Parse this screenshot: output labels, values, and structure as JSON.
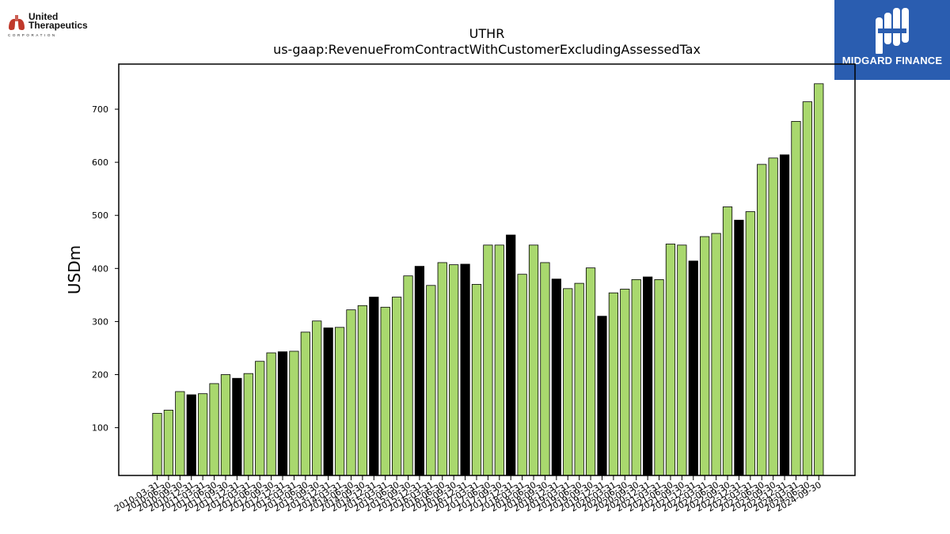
{
  "logos": {
    "left_name": "United\nTherapeutics",
    "left_sub": "CORPORATION",
    "right_name": "MIDGARD FINANCE"
  },
  "chart_data": {
    "type": "bar",
    "title": "UTHR",
    "subtitle": "us-gaap:RevenueFromContractWithCustomerExcludingAssessedTax",
    "ylabel": "USDm",
    "xlabel": "",
    "ylim": [
      10,
      785
    ],
    "yticks": [
      100,
      200,
      300,
      400,
      500,
      600,
      700
    ],
    "colors": {
      "quarter": "#a9d86e",
      "annual": "#000000",
      "edge": "#000000"
    },
    "categories": [
      "2010-03-31",
      "2010-06-30",
      "2010-09-30",
      "2010-12-31",
      "2011-03-31",
      "2011-06-30",
      "2011-09-30",
      "2011-12-31",
      "2012-03-31",
      "2012-06-30",
      "2012-09-30",
      "2012-12-31",
      "2013-03-31",
      "2013-06-30",
      "2013-09-30",
      "2013-12-31",
      "2014-03-31",
      "2014-06-30",
      "2014-09-30",
      "2014-12-31",
      "2015-03-31",
      "2015-06-30",
      "2015-09-30",
      "2015-12-31",
      "2016-03-31",
      "2016-06-30",
      "2016-09-30",
      "2016-12-31",
      "2017-03-31",
      "2017-06-30",
      "2017-09-30",
      "2017-12-31",
      "2018-03-31",
      "2018-06-30",
      "2018-09-30",
      "2018-12-31",
      "2019-03-31",
      "2019-06-30",
      "2019-09-30",
      "2019-12-31",
      "2020-03-31",
      "2020-06-30",
      "2020-09-30",
      "2020-12-31",
      "2021-03-31",
      "2021-06-30",
      "2021-09-30",
      "2021-12-31",
      "2022-03-31",
      "2022-06-30",
      "2022-09-30",
      "2022-12-31",
      "2023-03-31",
      "2023-06-30",
      "2023-09-30",
      "2023-12-31",
      "2024-03-31",
      "2024-06-30",
      "2024-09-30"
    ],
    "values": [
      127,
      133,
      168,
      162,
      164,
      183,
      200,
      193,
      202,
      225,
      241,
      243,
      244,
      280,
      301,
      288,
      289,
      322,
      330,
      346,
      327,
      346,
      386,
      404,
      368,
      411,
      407,
      408,
      370,
      444,
      444,
      463,
      389,
      444,
      411,
      380,
      362,
      372,
      401,
      310,
      354,
      361,
      379,
      384,
      379,
      446,
      444,
      414,
      460,
      466,
      516,
      491,
      507,
      596,
      608,
      614,
      677,
      714,
      748
    ],
    "annual_flags": [
      0,
      0,
      0,
      1,
      0,
      0,
      0,
      1,
      0,
      0,
      0,
      1,
      0,
      0,
      0,
      1,
      0,
      0,
      0,
      1,
      0,
      0,
      0,
      1,
      0,
      0,
      0,
      1,
      0,
      0,
      0,
      1,
      0,
      0,
      0,
      1,
      0,
      0,
      0,
      1,
      0,
      0,
      0,
      1,
      0,
      0,
      0,
      1,
      0,
      0,
      0,
      1,
      0,
      0,
      0,
      1,
      0,
      0,
      0
    ],
    "legend": "none",
    "grid": false
  }
}
